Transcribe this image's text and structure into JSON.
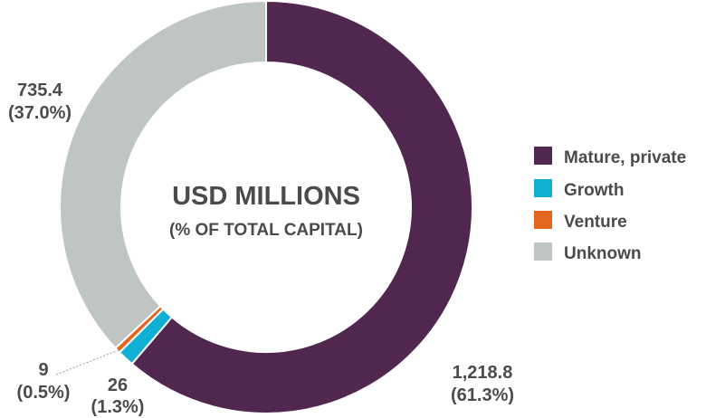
{
  "chart_data": {
    "type": "pie",
    "title": "USD MILLIONS",
    "subtitle": "(% OF TOTAL CAPITAL)",
    "legend_position": "right",
    "slices": [
      {
        "name": "Mature, private",
        "value": 1218.8,
        "value_label": "1,218.8",
        "percent_label": "(61.3%)",
        "color": "#51264f"
      },
      {
        "name": "Growth",
        "value": 26,
        "value_label": "26",
        "percent_label": "(1.3%)",
        "color": "#12afd4"
      },
      {
        "name": "Venture",
        "value": 9,
        "value_label": "9",
        "percent_label": "(0.5%)",
        "color": "#e2661e"
      },
      {
        "name": "Unknown",
        "value": 735.4,
        "value_label": "735.4",
        "percent_label": "(37.0%)",
        "color": "#bfc5c3"
      }
    ]
  }
}
